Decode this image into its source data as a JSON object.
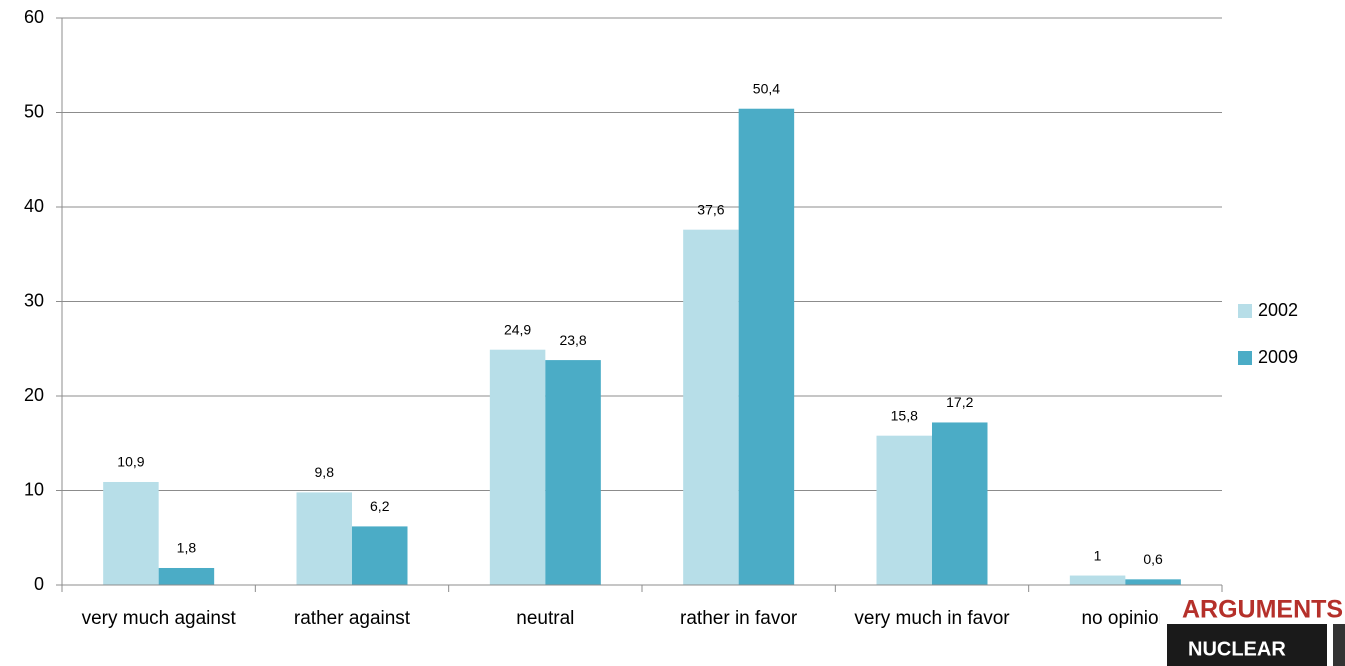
{
  "chart_data": {
    "type": "bar",
    "categories": [
      "very much against",
      "rather against",
      "neutral",
      "rather in favor",
      "very much in favor",
      "no opinion"
    ],
    "series": [
      {
        "name": "2002",
        "color": "#b7dee8",
        "values": [
          10.9,
          9.8,
          24.9,
          37.6,
          15.8,
          1
        ],
        "value_labels": [
          "10,9",
          "9,8",
          "24,9",
          "37,6",
          "15,8",
          "1"
        ]
      },
      {
        "name": "2009",
        "color": "#4bacc6",
        "values": [
          1.8,
          6.2,
          23.8,
          50.4,
          17.2,
          0.6
        ],
        "value_labels": [
          "1,8",
          "6,2",
          "23,8",
          "50,4",
          "17,2",
          "0,6"
        ]
      }
    ],
    "ylim": [
      0,
      60
    ],
    "yticks": [
      0,
      10,
      20,
      30,
      40,
      50,
      60
    ],
    "grid": true,
    "legend": "right"
  },
  "logo": {
    "title": "ARGUMENTS",
    "text": "NUCLEAR"
  }
}
